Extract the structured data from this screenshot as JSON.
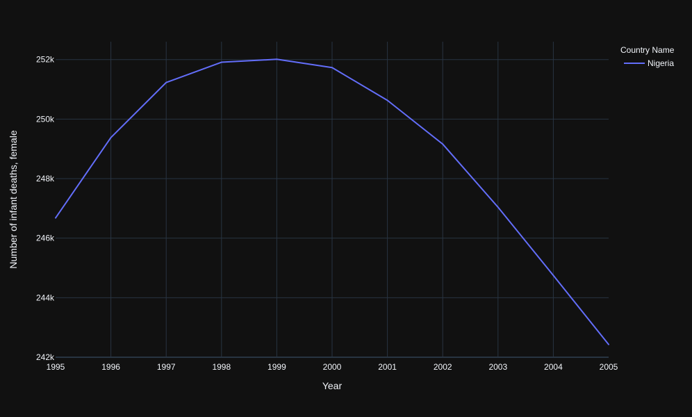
{
  "chart_data": {
    "type": "line",
    "title": "",
    "xlabel": "Year",
    "ylabel": "Number of infant deaths, female",
    "legend_title": "Country Name",
    "legend_position": "top-right",
    "grid": true,
    "xlim": [
      1995,
      2005
    ],
    "ylim": [
      242000,
      252600
    ],
    "x_ticks": [
      1995,
      1996,
      1997,
      1998,
      1999,
      2000,
      2001,
      2002,
      2003,
      2004,
      2005
    ],
    "x_tick_labels": [
      "1995",
      "1996",
      "1997",
      "1998",
      "1999",
      "2000",
      "2001",
      "2002",
      "2003",
      "2004",
      "2005"
    ],
    "y_ticks": [
      242000,
      244000,
      246000,
      248000,
      250000,
      252000
    ],
    "y_tick_labels": [
      "242k",
      "244k",
      "246k",
      "248k",
      "250k",
      "252k"
    ],
    "x": [
      1995,
      1996,
      1997,
      1998,
      1999,
      2000,
      2001,
      2002,
      2003,
      2004,
      2005
    ],
    "series": [
      {
        "name": "Nigeria",
        "color": "#636efa",
        "values": [
          246680,
          249380,
          251230,
          251910,
          252010,
          251730,
          250630,
          249160,
          247040,
          244750,
          242430
        ]
      }
    ]
  },
  "colors": {
    "background": "#111111",
    "grid": "#283442",
    "text": "#f2f5fa"
  }
}
